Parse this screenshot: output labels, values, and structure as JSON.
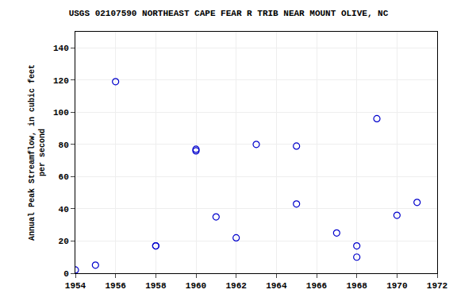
{
  "chart_data": {
    "type": "scatter",
    "title": "USGS 02107590 NORTHEAST CAPE FEAR R TRIB NEAR MOUNT OLIVE, NC",
    "ylabel": "Annual Peak Streamflow, in cubic feet\nper second",
    "x": [
      1954,
      1955,
      1956,
      1958,
      1958,
      1960,
      1960,
      1961,
      1962,
      1963,
      1965,
      1965,
      1967,
      1968,
      1968,
      1969,
      1970,
      1971
    ],
    "values": [
      2,
      5,
      119,
      17,
      17,
      77,
      76,
      35,
      22,
      80,
      43,
      79,
      25,
      17,
      10,
      96,
      36,
      44
    ],
    "color": "#0000cc",
    "marker": "circle-open",
    "xlim": [
      1954,
      1972
    ],
    "ylim": [
      0,
      150
    ],
    "xticks": [
      1954,
      1956,
      1958,
      1960,
      1962,
      1964,
      1966,
      1968,
      1970,
      1972
    ],
    "yticks": [
      0,
      20,
      40,
      60,
      80,
      100,
      120,
      140
    ],
    "grid": true
  }
}
